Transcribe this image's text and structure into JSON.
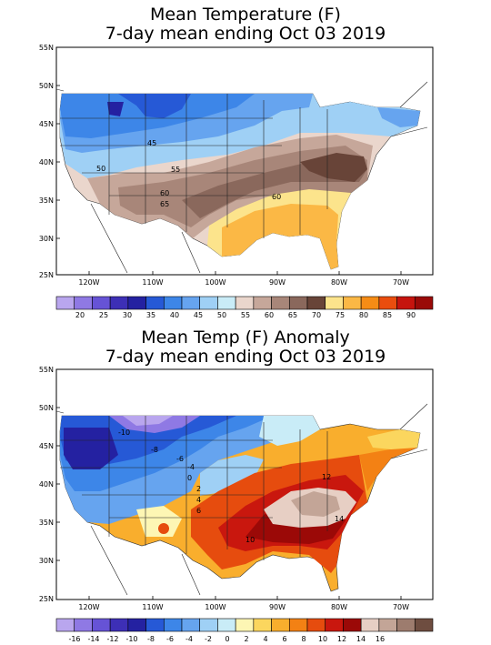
{
  "top": {
    "title_line1": "Mean Temperature (F)",
    "title_line2": "7-day mean ending Oct 03 2019",
    "lat_labels": [
      "55N",
      "50N",
      "45N",
      "40N",
      "35N",
      "30N",
      "25N"
    ],
    "lon_labels": [
      "120W",
      "110W",
      "100W",
      "90W",
      "80W",
      "70W"
    ],
    "contour_labels": [
      "45",
      "50",
      "55",
      "60",
      "65",
      "60"
    ],
    "legend_labels": [
      "20",
      "25",
      "30",
      "35",
      "40",
      "45",
      "50",
      "55",
      "60",
      "65",
      "70",
      "75",
      "80",
      "85",
      "90"
    ],
    "legend_colors": [
      "#b9a6ee",
      "#8f79e4",
      "#6653d6",
      "#3d2fb6",
      "#2421a1",
      "#2659d6",
      "#3d86e8",
      "#66a4ef",
      "#9fd0f5",
      "#c9ecf7",
      "#ead6cc",
      "#c6a79a",
      "#a88679",
      "#8a685c",
      "#684438",
      "#fce48c",
      "#fbb845",
      "#f68c15",
      "#ea4d0e",
      "#c6140e",
      "#9a0a08"
    ]
  },
  "bottom": {
    "title_line1": "Mean Temp (F) Anomaly",
    "title_line2": "7-day mean ending Oct 03 2019",
    "lat_labels": [
      "55N",
      "50N",
      "45N",
      "40N",
      "35N",
      "30N",
      "25N"
    ],
    "lon_labels": [
      "120W",
      "110W",
      "100W",
      "90W",
      "80W",
      "70W"
    ],
    "contour_labels": [
      "-10",
      "-8",
      "-6",
      "-4",
      "0",
      "2",
      "4",
      "6",
      "10",
      "12",
      "14"
    ],
    "legend_labels": [
      "-16",
      "-14",
      "-12",
      "-10",
      "-8",
      "-6",
      "-4",
      "-2",
      "0",
      "2",
      "4",
      "6",
      "8",
      "10",
      "12",
      "14",
      "16"
    ],
    "legend_colors": [
      "#b9a6ee",
      "#8f79e4",
      "#6653d6",
      "#3d2fb6",
      "#2421a1",
      "#2659d6",
      "#3d86e8",
      "#66a4ef",
      "#9fd0f5",
      "#c9ecf7",
      "#fdf6b4",
      "#fbd65e",
      "#f9ae2d",
      "#f38114",
      "#e64c0e",
      "#c9170e",
      "#9b0907",
      "#e7cfc4",
      "#c3a597",
      "#9d7c6e",
      "#6e4d40"
    ]
  }
}
